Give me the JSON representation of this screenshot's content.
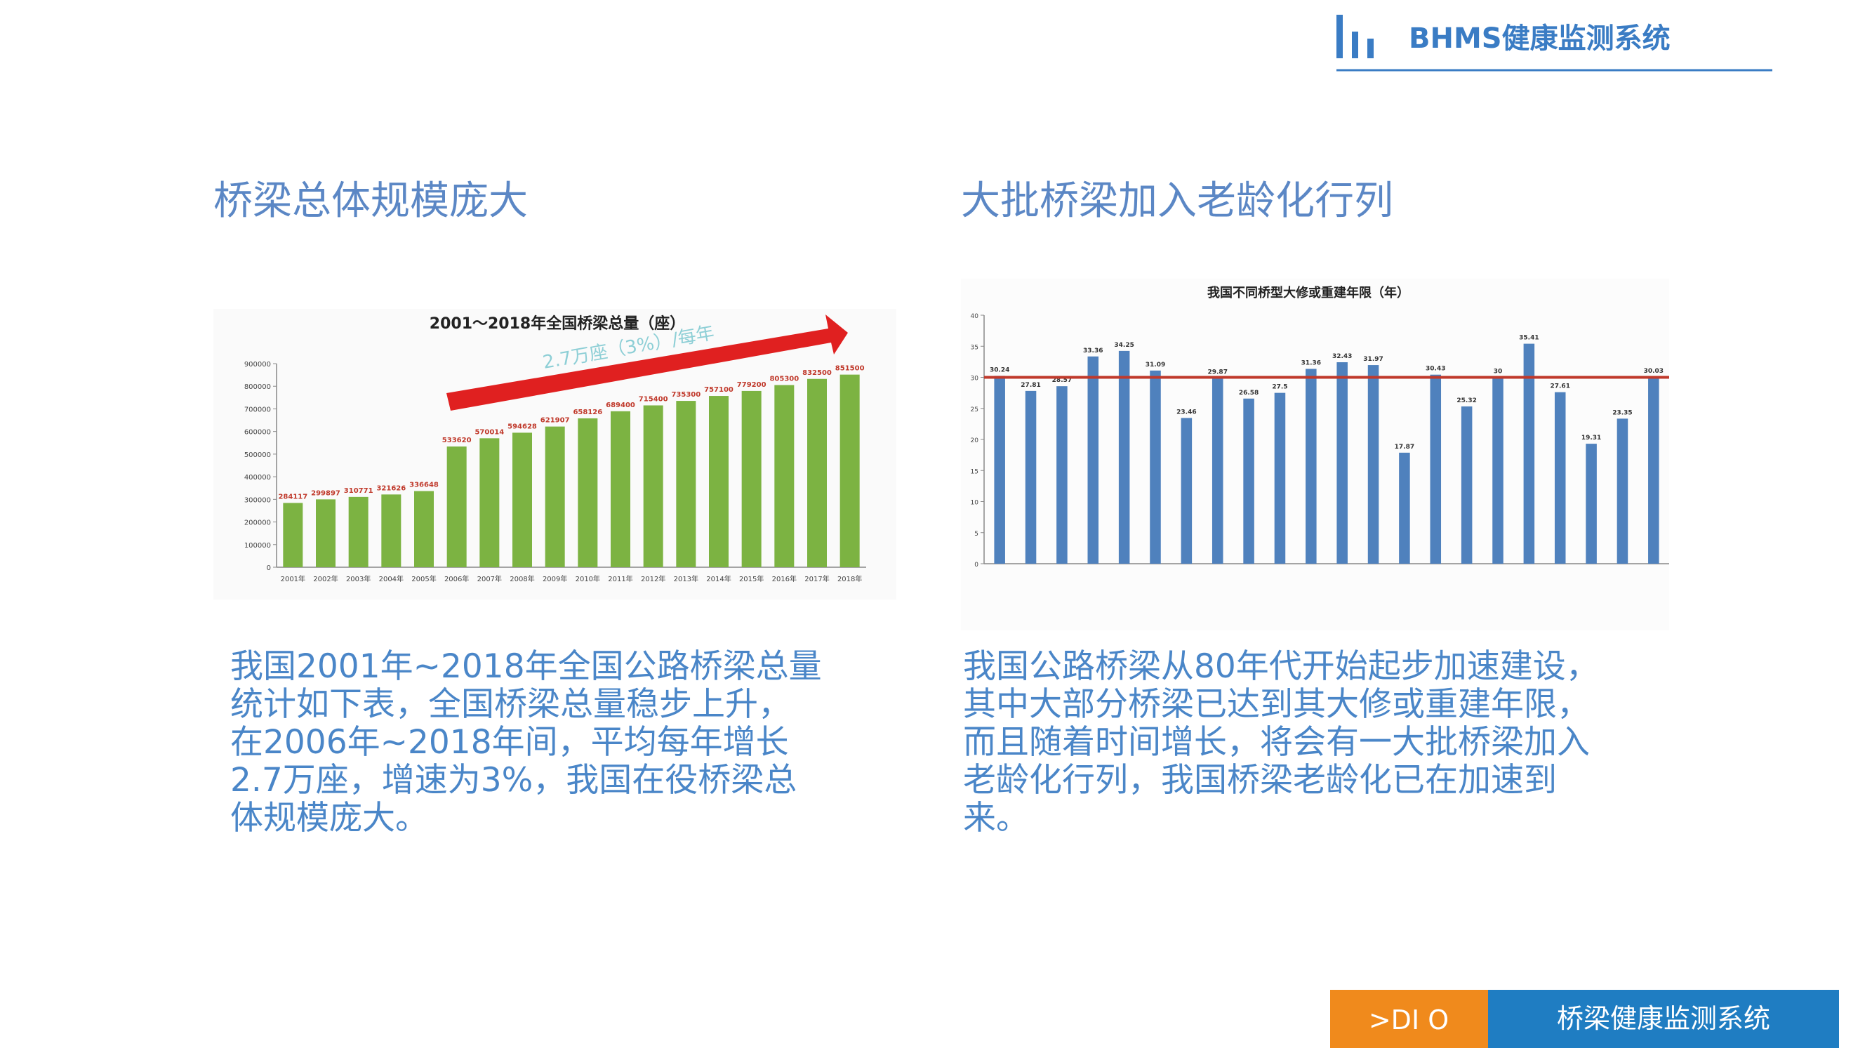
{
  "header": {
    "title": "BHMS健康监测系统"
  },
  "left": {
    "heading": "桥梁总体规模庞大",
    "chart_data": {
      "type": "bar",
      "title": "2001～2018年全国桥梁总量（座）",
      "annotation": "2.7万座（3%）/每年",
      "categories": [
        "2001年",
        "2002年",
        "2003年",
        "2004年",
        "2005年",
        "2006年",
        "2007年",
        "2008年",
        "2009年",
        "2010年",
        "2011年",
        "2012年",
        "2013年",
        "2014年",
        "2015年",
        "2016年",
        "2017年",
        "2018年"
      ],
      "values": [
        284117,
        299897,
        310771,
        321626,
        336648,
        533620,
        570014,
        594628,
        621907,
        658126,
        689400,
        715400,
        735300,
        757100,
        779200,
        805300,
        832500,
        851500
      ],
      "color": "#7cb342",
      "label_color": "#c0392b",
      "ylim": [
        0,
        900000
      ],
      "yticks": [
        0,
        100000,
        200000,
        300000,
        400000,
        500000,
        600000,
        700000,
        800000,
        900000
      ]
    },
    "paragraph": [
      "我国2001年~2018年全国公路桥梁总量",
      "统计如下表，全国桥梁总量稳步上升，",
      "在2006年~2018年间，平均每年增长",
      "2.7万座，增速为3%，我国在役桥梁总",
      "体规模庞大。"
    ]
  },
  "right": {
    "heading": "大批桥梁加入老龄化行列",
    "chart_data": {
      "type": "bar",
      "title": "我国不同桥型大修或重建年限（年）",
      "categories": [
        null,
        null,
        null,
        null,
        null,
        null,
        null,
        null,
        null,
        null,
        null,
        null,
        null,
        null,
        null,
        null,
        null,
        null,
        null,
        null,
        null,
        null
      ],
      "values": [
        30.24,
        27.81,
        28.57,
        33.36,
        34.25,
        31.09,
        23.46,
        29.87,
        26.58,
        27.5,
        31.36,
        32.43,
        31.97,
        17.87,
        30.43,
        25.32,
        30,
        35.41,
        27.61,
        19.31,
        23.35,
        30.03
      ],
      "color": "#4f81bd",
      "label_color": "#333333",
      "ref_line": 30,
      "ref_color": "#c0392b",
      "ylim": [
        0,
        40
      ],
      "yticks": [
        0,
        5,
        10,
        15,
        20,
        25,
        30,
        35,
        40
      ]
    },
    "paragraph": [
      "我国公路桥梁从80年代开始起步加速建设，",
      "其中大部分桥梁已达到其大修或重建年限，",
      "而且随着时间增长，将会有一大批桥梁加入",
      "老龄化行列，我国桥梁老龄化已在加速到",
      "来。"
    ]
  },
  "footer": {
    "tag": ">DI  O",
    "title": "桥梁健康监测系统"
  }
}
